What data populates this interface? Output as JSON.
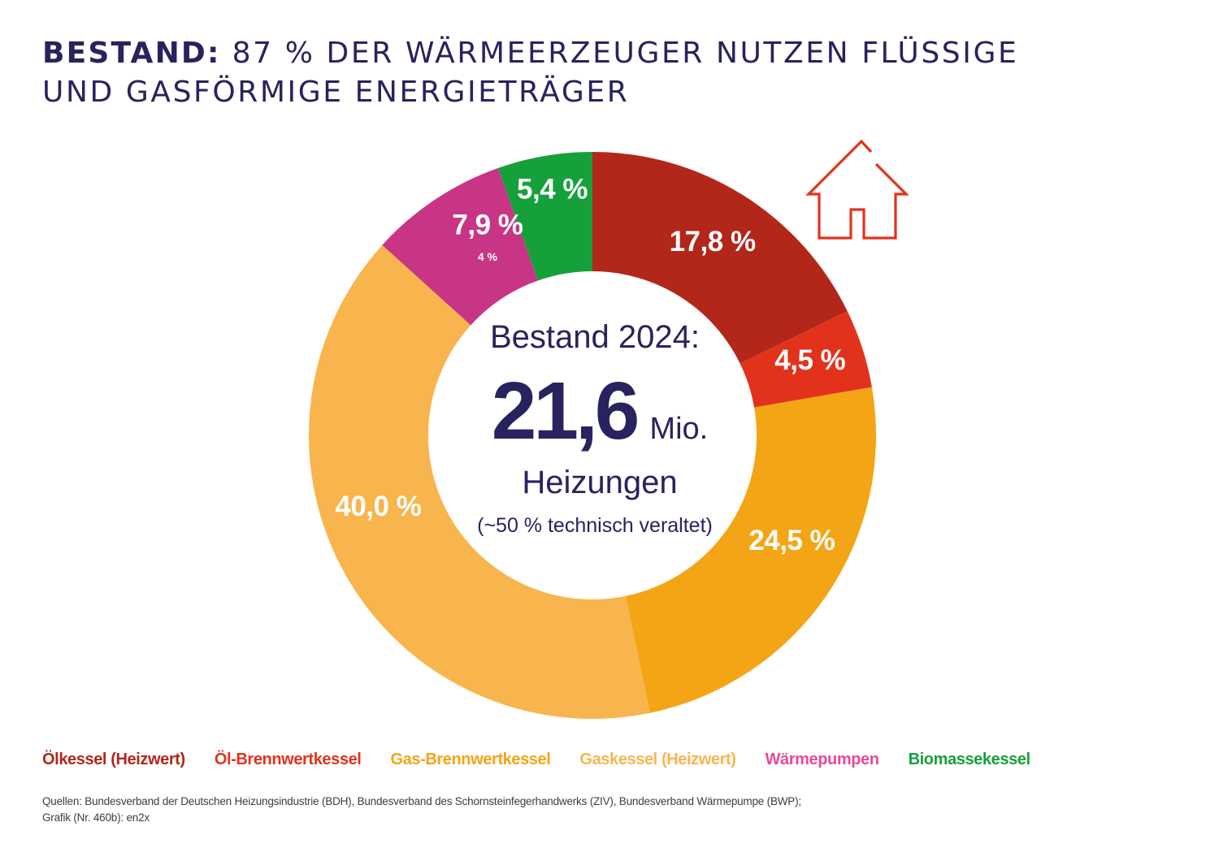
{
  "title": {
    "lead": "BESTAND:",
    "rest_line1": "87 % DER WÄRMEERZEUGER NUTZEN FLÜSSIGE",
    "line2": "UND GASFÖRMIGE ENERGIETRÄGER"
  },
  "center": {
    "line1": "Bestand 2024:",
    "big_number": "21,6",
    "unit": "Mio.",
    "line3": "Heizungen",
    "line4": "(~50 % technisch veraltet)"
  },
  "icons": {
    "house": "house-outline-icon"
  },
  "chart_data": {
    "type": "pie",
    "subtype": "donut",
    "title": "BESTAND: 87 % DER WÄRMEERZEUGER NUTZEN FLÜSSIGE UND GASFÖRMIGE ENERGIETRÄGER",
    "center_label": "Bestand 2024: 21,6 Mio. Heizungen (~50 % technisch veraltet)",
    "start_angle": "12 o'clock",
    "direction": "clockwise",
    "unit": "%",
    "categories": [
      "Ölkessel (Heizwert)",
      "Öl-Brennwertkessel",
      "Gas-Brennwertkessel",
      "Gaskessel (Heizwert)",
      "Wärmepumpen",
      "Biomassekessel"
    ],
    "values": [
      17.8,
      4.5,
      24.5,
      40.0,
      7.9,
      5.4
    ],
    "labels": [
      "17,8 %",
      "4,5 %",
      "24,5 %",
      "40,0 %",
      "7,9 %",
      "5,4 %"
    ],
    "sublabels": [
      "",
      "",
      "",
      "",
      "4 %",
      ""
    ],
    "colors": [
      "#B3261A",
      "#E3321B",
      "#F4A515",
      "#F8B54E",
      "#C83585",
      "#16A03C"
    ],
    "legend_colors": [
      "#B3261A",
      "#E3321B",
      "#F4A515",
      "#F8B54E",
      "#E8499A",
      "#16A03C"
    ],
    "legend_position": "bottom"
  },
  "source": {
    "line1": "Quellen: Bundesverband der Deutschen Heizungsindustrie (BDH), Bundesverband des Schornsteinfegerhandwerks (ZIV), Bundesverband Wärmepumpe (BWP);",
    "line2": "Grafik (Nr. 460b): en2x"
  }
}
